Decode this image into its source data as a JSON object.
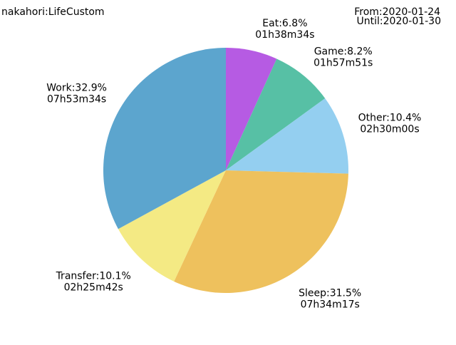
{
  "header": {
    "title": "nakahori:LifeCustom",
    "from": "From:2020-01-24",
    "until": "Until:2020-01-30"
  },
  "chart_data": {
    "type": "pie",
    "title": "nakahori:LifeCustom",
    "start_angle_deg": 90,
    "direction": "clockwise",
    "slices": [
      {
        "label": "Eat",
        "percent": 6.8,
        "duration": "01h38m34s",
        "color": "#b65be3",
        "text": "Eat:6.8%"
      },
      {
        "label": "Game",
        "percent": 8.2,
        "duration": "01h57m51s",
        "color": "#57c0a5",
        "text": "Game:8.2%"
      },
      {
        "label": "Other",
        "percent": 10.4,
        "duration": "02h30m00s",
        "color": "#94cff0",
        "text": "Other:10.4%"
      },
      {
        "label": "Sleep",
        "percent": 31.5,
        "duration": "07h34m17s",
        "color": "#eec15d",
        "text": "Sleep:31.5%"
      },
      {
        "label": "Transfer",
        "percent": 10.1,
        "duration": "02h25m42s",
        "color": "#f4ea84",
        "text": "Transfer:10.1%"
      },
      {
        "label": "Work",
        "percent": 32.9,
        "duration": "07h53m34s",
        "color": "#5ca5ce",
        "text": "Work:32.9%"
      }
    ]
  }
}
